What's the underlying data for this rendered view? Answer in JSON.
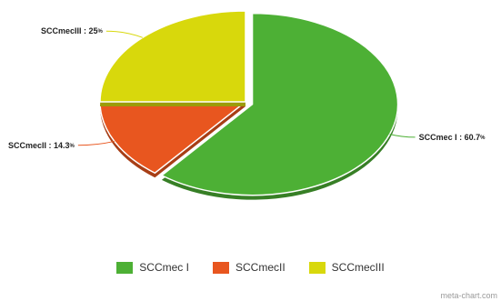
{
  "chart_data": {
    "type": "pie",
    "categories": [
      "SCCmec I",
      "SCCmecII",
      "SCCmecIII"
    ],
    "values": [
      60.7,
      14.3,
      25
    ],
    "unit": "%",
    "data_labels": [
      "SCCmec I : 60.7",
      "SCCmecII : 14.3",
      "SCCmecIII : 25"
    ],
    "colors": [
      "#4db035",
      "#e8561f",
      "#d8d80c"
    ],
    "legend_position": "bottom",
    "exploded_slice": "SCCmec I",
    "title": ""
  },
  "legend": {
    "items": [
      {
        "label": "SCCmec I",
        "color": "#4db035"
      },
      {
        "label": "SCCmecII",
        "color": "#e8561f"
      },
      {
        "label": "SCCmecIII",
        "color": "#d8d80c"
      }
    ]
  },
  "watermark": "meta-chart.com"
}
